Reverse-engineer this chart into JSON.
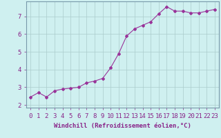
{
  "x": [
    0,
    1,
    2,
    3,
    4,
    5,
    6,
    7,
    8,
    9,
    10,
    11,
    12,
    13,
    14,
    15,
    16,
    17,
    18,
    19,
    20,
    21,
    22,
    23
  ],
  "y": [
    2.45,
    2.7,
    2.45,
    2.8,
    2.9,
    2.95,
    3.0,
    3.25,
    3.35,
    3.5,
    4.1,
    4.9,
    5.9,
    6.3,
    6.5,
    6.7,
    7.15,
    7.55,
    7.3,
    7.3,
    7.2,
    7.2,
    7.3,
    7.4
  ],
  "line_color": "#993399",
  "marker": "D",
  "markersize": 2,
  "bg_color": "#cff0f0",
  "grid_color": "#aacccc",
  "xlabel": "Windchill (Refroidissement éolien,°C)",
  "ylabel_ticks": [
    2,
    3,
    4,
    5,
    6,
    7
  ],
  "xlim": [
    -0.5,
    23.5
  ],
  "ylim": [
    1.85,
    7.85
  ],
  "xlabel_fontsize": 6.5,
  "tick_fontsize": 6.5,
  "label_color": "#882288",
  "spine_color": "#7799aa"
}
